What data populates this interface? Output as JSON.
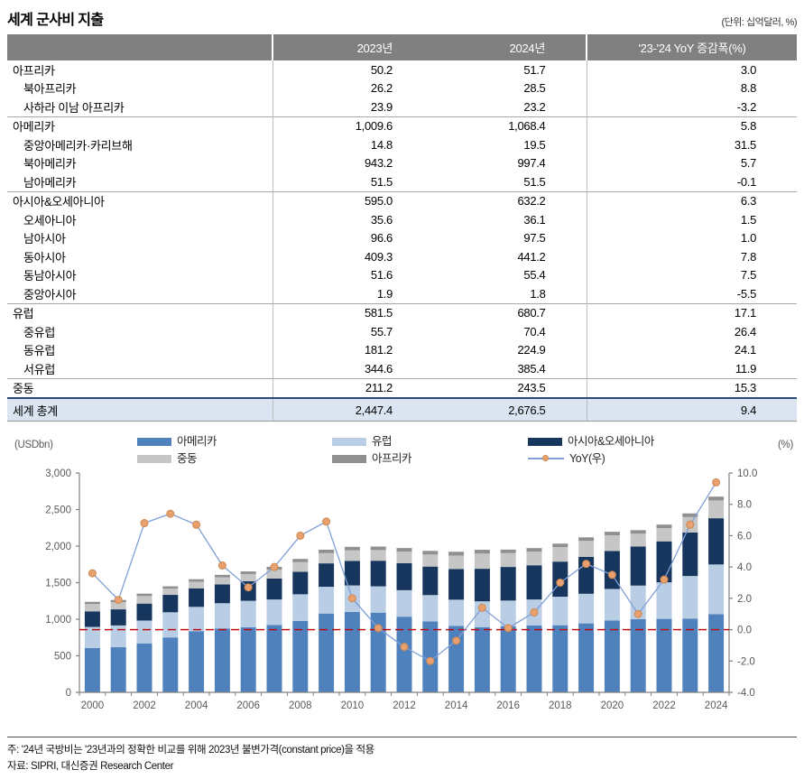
{
  "title": "세계 군사비 지출",
  "unit_note": "(단위: 십억달러, %)",
  "colors": {
    "table_header_bg": "#808080",
    "total_row_bg": "#dbe5f1",
    "zero_line": "#c00000",
    "yoy_line": "#7f9fd6",
    "yoy_marker": "#e8a06e"
  },
  "table": {
    "columns": [
      "",
      "2023년",
      "2024년",
      "'23-'24 YoY 증감폭(%)"
    ],
    "rows": [
      {
        "label": "아프리카",
        "level": 0,
        "group": false,
        "v2023": "50.2",
        "v2024": "51.7",
        "yoy": "3.0"
      },
      {
        "label": "북아프리카",
        "level": 1,
        "group": false,
        "v2023": "26.2",
        "v2024": "28.5",
        "yoy": "8.8"
      },
      {
        "label": "사하라 이남 아프리카",
        "level": 1,
        "group": false,
        "v2023": "23.9",
        "v2024": "23.2",
        "yoy": "-3.2"
      },
      {
        "label": "아메리카",
        "level": 0,
        "group": true,
        "v2023": "1,009.6",
        "v2024": "1,068.4",
        "yoy": "5.8"
      },
      {
        "label": "중앙아메리카·카리브해",
        "level": 1,
        "group": false,
        "v2023": "14.8",
        "v2024": "19.5",
        "yoy": "31.5"
      },
      {
        "label": "북아메리카",
        "level": 1,
        "group": false,
        "v2023": "943.2",
        "v2024": "997.4",
        "yoy": "5.7"
      },
      {
        "label": "남아메리카",
        "level": 1,
        "group": false,
        "v2023": "51.5",
        "v2024": "51.5",
        "yoy": "-0.1"
      },
      {
        "label": "아시아&오세아니아",
        "level": 0,
        "group": true,
        "v2023": "595.0",
        "v2024": "632.2",
        "yoy": "6.3"
      },
      {
        "label": "오세아니아",
        "level": 1,
        "group": false,
        "v2023": "35.6",
        "v2024": "36.1",
        "yoy": "1.5"
      },
      {
        "label": "남아시아",
        "level": 1,
        "group": false,
        "v2023": "96.6",
        "v2024": "97.5",
        "yoy": "1.0"
      },
      {
        "label": "동아시아",
        "level": 1,
        "group": false,
        "v2023": "409.3",
        "v2024": "441.2",
        "yoy": "7.8"
      },
      {
        "label": "동남아시아",
        "level": 1,
        "group": false,
        "v2023": "51.6",
        "v2024": "55.4",
        "yoy": "7.5"
      },
      {
        "label": "중앙아시아",
        "level": 1,
        "group": false,
        "v2023": "1.9",
        "v2024": "1.8",
        "yoy": "-5.5"
      },
      {
        "label": "유럽",
        "level": 0,
        "group": true,
        "v2023": "581.5",
        "v2024": "680.7",
        "yoy": "17.1"
      },
      {
        "label": "중유럽",
        "level": 1,
        "group": false,
        "v2023": "55.7",
        "v2024": "70.4",
        "yoy": "26.4"
      },
      {
        "label": "동유럽",
        "level": 1,
        "group": false,
        "v2023": "181.2",
        "v2024": "224.9",
        "yoy": "24.1"
      },
      {
        "label": "서유럽",
        "level": 1,
        "group": false,
        "v2023": "344.6",
        "v2024": "385.4",
        "yoy": "11.9"
      },
      {
        "label": "중동",
        "level": 0,
        "group": true,
        "v2023": "211.2",
        "v2024": "243.5",
        "yoy": "15.3"
      }
    ],
    "total": {
      "label": "세계 총계",
      "v2023": "2,447.4",
      "v2024": "2,676.5",
      "yoy": "9.4"
    }
  },
  "chart_data": {
    "type": "bar",
    "subtype": "stacked-bar-with-line",
    "x": [
      2000,
      2001,
      2002,
      2003,
      2004,
      2005,
      2006,
      2007,
      2008,
      2009,
      2010,
      2011,
      2012,
      2013,
      2014,
      2015,
      2016,
      2017,
      2018,
      2019,
      2020,
      2021,
      2022,
      2023,
      2024
    ],
    "series": [
      {
        "name": "아메리카",
        "color": "#4f81bd",
        "values": [
          605,
          617,
          670,
          751,
          837,
          874,
          890,
          920,
          976,
          1078,
          1100,
          1090,
          1035,
          970,
          910,
          892,
          905,
          915,
          918,
          943,
          984,
          1000,
          1005,
          1009.6,
          1068.4
        ]
      },
      {
        "name": "유럽",
        "color": "#b9cde5",
        "values": [
          290,
          298,
          312,
          344,
          332,
          345,
          362,
          350,
          365,
          366,
          362,
          360,
          362,
          360,
          357,
          353,
          350,
          355,
          390,
          405,
          430,
          460,
          500,
          581.5,
          680.7
        ]
      },
      {
        "name": "아시아&오세아니아",
        "color": "#17365d",
        "values": [
          213,
          220,
          232,
          238,
          254,
          258,
          268,
          286,
          307,
          320,
          335,
          350,
          370,
          390,
          420,
          445,
          460,
          468,
          480,
          505,
          520,
          535,
          560,
          595.0,
          632.2
        ]
      },
      {
        "name": "중동",
        "color": "#c6c6c6",
        "values": [
          100,
          98,
          103,
          85,
          90,
          96,
          98,
          123,
          133,
          140,
          145,
          146,
          157,
          165,
          184,
          208,
          189,
          187,
          198,
          219,
          214,
          175,
          180,
          211.2,
          243.5
        ]
      },
      {
        "name": "아프리카",
        "color": "#909090",
        "values": [
          30,
          30,
          33,
          32,
          34,
          34,
          36,
          38,
          44,
          47,
          48,
          48,
          50,
          50,
          52,
          52,
          48,
          48,
          48,
          48,
          48,
          48,
          49,
          50.2,
          51.7
        ]
      }
    ],
    "line": {
      "name": "YoY(우)",
      "axis": "right",
      "color": "#7f9fd6",
      "marker_color": "#e8a06e",
      "values": [
        3.6,
        1.9,
        6.8,
        7.4,
        6.7,
        4.1,
        2.7,
        4.0,
        6.0,
        6.9,
        2.0,
        0.1,
        -1.1,
        -2.0,
        -0.7,
        1.4,
        0.1,
        1.1,
        3.0,
        4.2,
        3.5,
        1.0,
        3.2,
        6.7,
        9.4
      ]
    },
    "left_axis": {
      "unit": "(USDbn)",
      "min": 0,
      "max": 3000,
      "tick_step": 500,
      "tick_labels": [
        "0",
        "500",
        "1,000",
        "1,500",
        "2,000",
        "2,500",
        "3,000"
      ]
    },
    "right_axis": {
      "unit": "(%)",
      "min": -4,
      "max": 10,
      "tick_step": 2,
      "tick_labels": [
        "-4.0",
        "-2.0",
        "0.0",
        "2.0",
        "4.0",
        "6.0",
        "8.0",
        "10.0"
      ]
    },
    "x_tick_labels": [
      "2000",
      "2002",
      "2004",
      "2006",
      "2008",
      "2010",
      "2012",
      "2014",
      "2016",
      "2018",
      "2020",
      "2022",
      "2024"
    ],
    "zero_reference_line": {
      "value": 0,
      "axis": "right",
      "color": "#c00000",
      "style": "dashed"
    },
    "legend": [
      {
        "label": "아메리카",
        "swatch": "#4f81bd",
        "row": 0,
        "col": 0
      },
      {
        "label": "유럽",
        "swatch": "#b9cde5",
        "row": 0,
        "col": 1
      },
      {
        "label": "아시아&오세아니아",
        "swatch": "#17365d",
        "row": 0,
        "col": 2
      },
      {
        "label": "중동",
        "swatch": "#c6c6c6",
        "row": 1,
        "col": 0
      },
      {
        "label": "아프리카",
        "swatch": "#909090",
        "row": 1,
        "col": 1
      },
      {
        "label": "YoY(우)",
        "swatch": "line",
        "row": 1,
        "col": 2
      }
    ],
    "legend_position": "top",
    "grid": false
  },
  "footnotes": [
    "주: '24년 국방비는 '23년과의 정확한 비교를 위해 2023년 불변가격(constant price)을 적용",
    "자료: SIPRI, 대신증권 Research Center"
  ]
}
